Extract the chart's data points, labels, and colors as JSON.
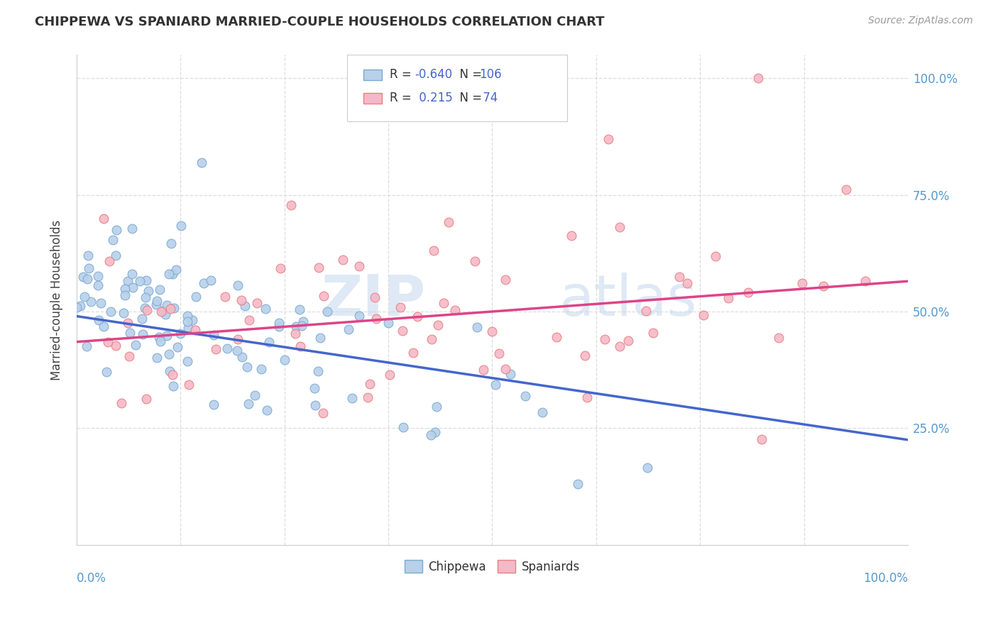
{
  "title": "CHIPPEWA VS SPANIARD MARRIED-COUPLE HOUSEHOLDS CORRELATION CHART",
  "source": "Source: ZipAtlas.com",
  "ylabel": "Married-couple Households",
  "watermark": "ZIPAtlas",
  "chippewa_color": "#b8d0ea",
  "spaniard_color": "#f5b8c8",
  "chippewa_edge": "#7aaad0",
  "spaniard_edge": "#e88080",
  "trend_blue": "#4466cc",
  "trend_pink": "#dd4488",
  "blue_R": -0.64,
  "blue_N": 106,
  "pink_R": 0.215,
  "pink_N": 74,
  "blue_intercept": 0.49,
  "blue_slope": -0.265,
  "pink_intercept": 0.435,
  "pink_slope": 0.13,
  "label_color_value": "#4466cc",
  "label_color_text": "#333333"
}
